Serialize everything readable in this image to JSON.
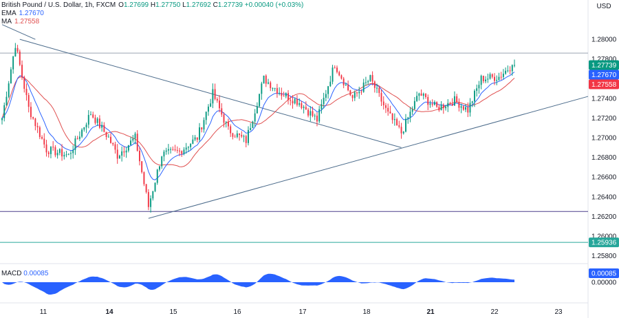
{
  "header": {
    "symbol": "British Pound / U.S. Dollar, 1h, FXCM",
    "open_label": "O",
    "open": "1.27699",
    "high_label": "H",
    "high": "1.27750",
    "low_label": "L",
    "low": "1.27692",
    "close_label": "C",
    "close": "1.27739",
    "change": "+0.00040 (+0.03%)",
    "ema_label": "EMA",
    "ema_value": "1.27670",
    "ma_label": "MA",
    "ma_value": "1.27558"
  },
  "macd": {
    "label": "MACD",
    "value": "0.00085"
  },
  "currency": "USD",
  "colors": {
    "up": "#089981",
    "down": "#f23645",
    "ema": "#2962ff",
    "ma": "#e04f4f",
    "trend": "#4a6a8a",
    "macd_fill": "#2962ff",
    "support": "#26a69a"
  },
  "chart_data": {
    "type": "candlestick",
    "y_ticks": [
      "1.28000",
      "1.27800",
      "1.27600",
      "1.27400",
      "1.27200",
      "1.27000",
      "1.26800",
      "1.26600",
      "1.26400",
      "1.26200",
      "1.26000",
      "1.25800"
    ],
    "ylim": [
      1.2572,
      1.284
    ],
    "x_ticks": [
      "11",
      "14",
      "15",
      "16",
      "17",
      "18",
      "21",
      "22",
      "23"
    ],
    "price_tags": [
      {
        "value": "1.27739",
        "color": "#089981"
      },
      {
        "value": "1.27670",
        "color": "#2962ff"
      },
      {
        "value": "1.27558",
        "color": "#f23645"
      },
      {
        "value": "1.25936",
        "color": "#26a69a"
      }
    ],
    "horizontal_levels": [
      1.2786,
      1.2625,
      1.25936
    ],
    "macd_ticks": [
      "0.00085",
      "0.00000"
    ],
    "key_points": [
      {
        "bar": 0,
        "close": 1.272
      },
      {
        "bar": 6,
        "close": 1.2795
      },
      {
        "bar": 12,
        "close": 1.273
      },
      {
        "bar": 20,
        "close": 1.2688
      },
      {
        "bar": 30,
        "close": 1.2682
      },
      {
        "bar": 40,
        "close": 1.2725
      },
      {
        "bar": 48,
        "close": 1.27
      },
      {
        "bar": 52,
        "close": 1.2682
      },
      {
        "bar": 60,
        "close": 1.27
      },
      {
        "bar": 66,
        "close": 1.263
      },
      {
        "bar": 72,
        "close": 1.2683
      },
      {
        "bar": 80,
        "close": 1.2686
      },
      {
        "bar": 88,
        "close": 1.27
      },
      {
        "bar": 95,
        "close": 1.2745
      },
      {
        "bar": 102,
        "close": 1.2708
      },
      {
        "bar": 110,
        "close": 1.2697
      },
      {
        "bar": 118,
        "close": 1.276
      },
      {
        "bar": 126,
        "close": 1.2745
      },
      {
        "bar": 134,
        "close": 1.2736
      },
      {
        "bar": 142,
        "close": 1.2718
      },
      {
        "bar": 150,
        "close": 1.2775
      },
      {
        "bar": 158,
        "close": 1.274
      },
      {
        "bar": 166,
        "close": 1.276
      },
      {
        "bar": 174,
        "close": 1.2724
      },
      {
        "bar": 180,
        "close": 1.2705
      },
      {
        "bar": 188,
        "close": 1.2745
      },
      {
        "bar": 196,
        "close": 1.273
      },
      {
        "bar": 204,
        "close": 1.2738
      },
      {
        "bar": 210,
        "close": 1.2728
      },
      {
        "bar": 216,
        "close": 1.276
      },
      {
        "bar": 224,
        "close": 1.2762
      },
      {
        "bar": 230,
        "close": 1.27739
      }
    ]
  }
}
